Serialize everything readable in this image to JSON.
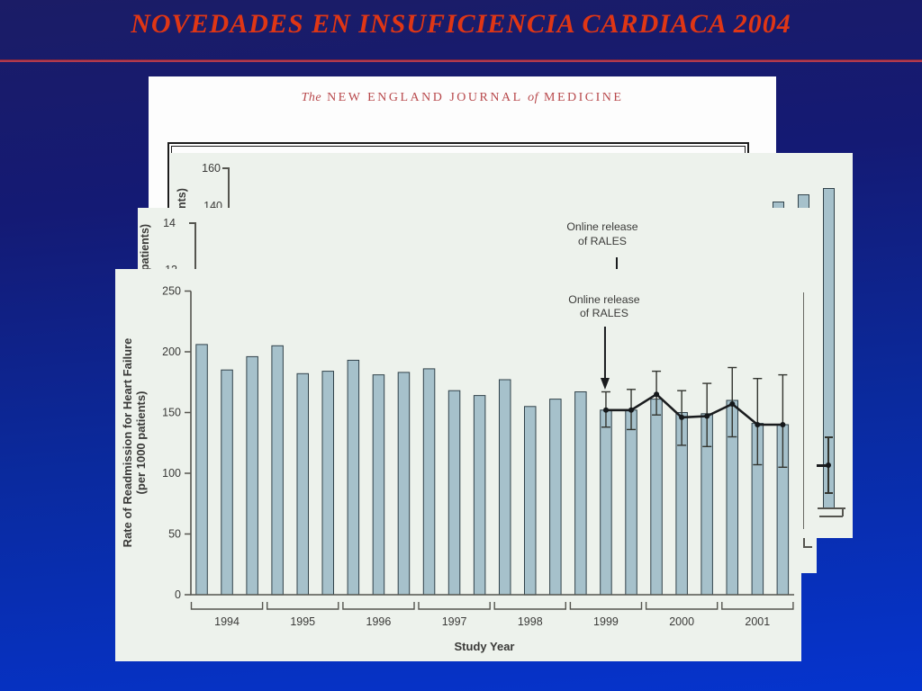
{
  "slide": {
    "title": "NOVEDADES EN INSUFICIENCIA CARDIACA 2004",
    "colors": {
      "title_red": "#df3615",
      "rule_red": "#b23a4e",
      "background_top": "#1b1c66",
      "background_bottom": "#0534ce",
      "page_cream": "#edf2ec",
      "page_white": "#fdfdfd"
    }
  },
  "nejm_page": {
    "masthead_the": "The",
    "masthead_part1": "NEW ENGLAND JOURNAL",
    "masthead_of": "of",
    "masthead_part2": "MEDICINE",
    "masthead_color": "#b8494c"
  },
  "panel2": {
    "yticks": [
      "160",
      "140"
    ],
    "ylabel_fragment": "nts)"
  },
  "panel3": {
    "yticks": [
      "14",
      "12"
    ],
    "ylabel_fragment": "patients)",
    "annotation_line1": "Online release",
    "annotation_line2": "of RALES"
  },
  "chart_data": {
    "type": "bar+line",
    "title": "",
    "ylabel_line1": "Rate of Readmission for Heart Failure",
    "ylabel_line2": "(per 1000 patients)",
    "xlabel": "Study Year",
    "ylim": [
      0,
      250
    ],
    "yticks": [
      0,
      50,
      100,
      150,
      200,
      250
    ],
    "years": [
      "1994",
      "1995",
      "1996",
      "1997",
      "1998",
      "1999",
      "2000",
      "2001"
    ],
    "bars_per_year": 3,
    "bar_values": [
      206,
      185,
      196,
      205,
      182,
      184,
      193,
      181,
      183,
      186,
      168,
      164,
      177,
      155,
      161,
      167,
      152,
      152,
      161,
      150,
      149,
      160,
      141,
      140
    ],
    "bar_color": "#a6c1cb",
    "bar_stroke": "#31424a",
    "line_series": {
      "start_bar_index": 16,
      "values": [
        152,
        152,
        165,
        146,
        147,
        157,
        140,
        140
      ],
      "ci_low": [
        138,
        136,
        148,
        123,
        122,
        130,
        107,
        105
      ],
      "ci_high": [
        167,
        169,
        184,
        168,
        174,
        187,
        178,
        181
      ],
      "color": "#1a1c1e"
    },
    "annotation": {
      "line1": "Online release",
      "line2": "of RALES",
      "target_bar_index": 16
    },
    "grid": false,
    "legend": false
  }
}
